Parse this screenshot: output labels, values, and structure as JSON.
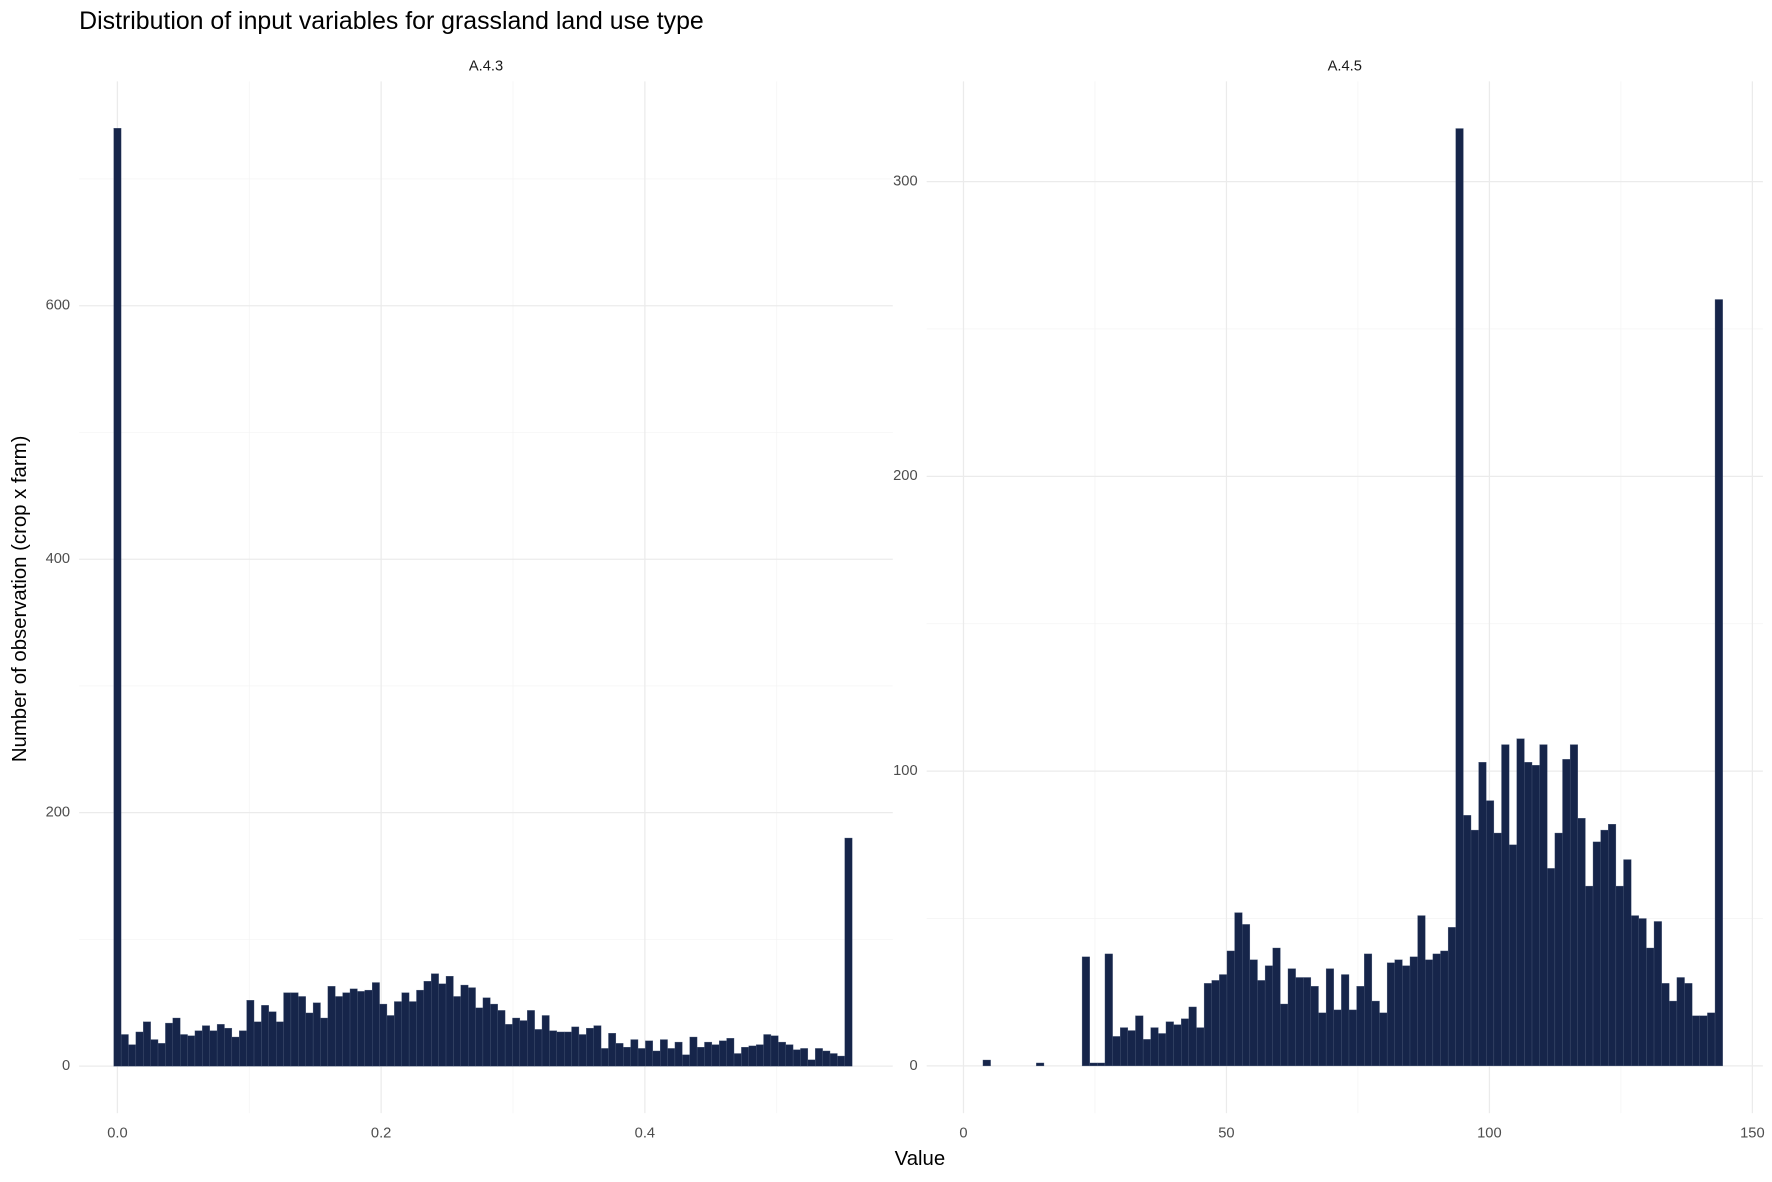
{
  "title": "Distribution of input variables for grassland land use type",
  "x_label": "Value",
  "y_label": "Number of observation (crop x farm)",
  "chart_data": [
    {
      "type": "histogram",
      "title": "A.4.3",
      "color": "#16254a",
      "grid": true,
      "bins": [
        -0.0028,
        0.0028,
        0.0084,
        0.014,
        0.0196,
        0.0252,
        0.0308,
        0.0364,
        0.042,
        0.0476,
        0.0532,
        0.0588,
        0.0644,
        0.07,
        0.0756,
        0.0812,
        0.0868,
        0.0924,
        0.098,
        0.1036,
        0.1092,
        0.1148,
        0.1204,
        0.126,
        0.1316,
        0.1372,
        0.1428,
        0.1484,
        0.154,
        0.1596,
        0.1652,
        0.1708,
        0.1764,
        0.182,
        0.1876,
        0.1932,
        0.1988,
        0.2044,
        0.21,
        0.2156,
        0.2212,
        0.2268,
        0.2324,
        0.238,
        0.2436,
        0.2492,
        0.2548,
        0.2604,
        0.266,
        0.2716,
        0.2772,
        0.2828,
        0.2884,
        0.294,
        0.2996,
        0.3052,
        0.3108,
        0.3164,
        0.322,
        0.3276,
        0.3332,
        0.3388,
        0.3444,
        0.35,
        0.3556,
        0.3612,
        0.3668,
        0.3724,
        0.378,
        0.3836,
        0.3892,
        0.3948,
        0.4004,
        0.406,
        0.4116,
        0.4172,
        0.4228,
        0.4284,
        0.434,
        0.4396,
        0.4452,
        0.4508,
        0.4564,
        0.462,
        0.4676,
        0.4732,
        0.4788,
        0.4844,
        0.49,
        0.4956,
        0.5012,
        0.5068,
        0.5124,
        0.518,
        0.5236,
        0.5292,
        0.5348,
        0.5404,
        0.546,
        0.5516,
        0.5572
      ],
      "values": [
        740,
        25,
        17,
        27,
        35,
        21,
        18,
        34,
        38,
        25,
        24,
        28,
        32,
        28,
        33,
        30,
        23,
        28,
        52,
        35,
        48,
        43,
        35,
        58,
        58,
        55,
        42,
        50,
        38,
        63,
        55,
        58,
        61,
        59,
        60,
        66,
        49,
        40,
        51,
        58,
        51,
        60,
        67,
        73,
        65,
        71,
        55,
        64,
        62,
        46,
        54,
        49,
        44,
        33,
        38,
        36,
        44,
        29,
        40,
        28,
        27,
        27,
        31,
        25,
        30,
        32,
        14,
        26,
        18,
        15,
        21,
        14,
        20,
        12,
        21,
        14,
        19,
        9,
        23,
        15,
        19,
        17,
        20,
        22,
        10,
        15,
        16,
        17,
        25,
        24,
        19,
        17,
        13,
        14,
        5,
        14,
        12,
        10,
        8,
        180
      ],
      "xlim": [
        -0.029,
        0.588
      ],
      "ylim": [
        -37,
        777
      ],
      "xticks": [
        {
          "value": 0,
          "label": "0.0"
        },
        {
          "value": 0.2,
          "label": "0.2"
        },
        {
          "value": 0.4,
          "label": "0.4"
        }
      ],
      "x_minor_ticks": [
        0.1,
        0.3,
        0.5
      ],
      "yticks": [
        0,
        200,
        400,
        600
      ],
      "y_minor_ticks": [
        100,
        300,
        500,
        700
      ]
    },
    {
      "type": "histogram",
      "title": "A.4.5",
      "color": "#16254a",
      "grid": true,
      "bins": [
        3.7,
        5.15,
        6.6,
        8.05,
        9.5,
        10.95,
        12.4,
        13.85,
        15.3,
        16.75,
        18.2,
        19.65,
        21.1,
        22.55,
        24,
        25.45,
        26.9,
        28.35,
        29.8,
        31.25,
        32.7,
        34.15,
        35.6,
        37.05,
        38.5,
        39.95,
        41.4,
        42.85,
        44.3,
        45.75,
        47.2,
        48.65,
        50.1,
        51.55,
        53,
        54.45,
        55.9,
        57.35,
        58.8,
        60.25,
        61.7,
        63.15,
        64.6,
        66.05,
        67.5,
        68.95,
        70.4,
        71.85,
        73.3,
        74.75,
        76.2,
        77.65,
        79.1,
        80.55,
        82,
        83.45,
        84.9,
        86.35,
        87.8,
        89.25,
        90.7,
        92.15,
        93.6,
        95.05,
        96.5,
        97.95,
        99.4,
        100.85,
        102.3,
        103.75,
        105.2,
        106.65,
        108.1,
        109.55,
        111,
        112.45,
        113.9,
        115.35,
        116.8,
        118.25,
        119.7,
        121.15,
        122.6,
        124.05,
        125.5,
        126.95,
        128.4,
        129.85,
        131.3,
        132.75,
        134.2,
        135.65,
        137.1,
        138.55,
        140,
        141.45,
        142.9,
        144.35
      ],
      "values": [
        2,
        0,
        0,
        0,
        0,
        0,
        0,
        1,
        0,
        0,
        0,
        0,
        0,
        37,
        1,
        1,
        38,
        10,
        13,
        12,
        17,
        9,
        13,
        11,
        15,
        14,
        16,
        20,
        13,
        28,
        29,
        31,
        39,
        52,
        48,
        36,
        29,
        34,
        40,
        21,
        33,
        30,
        30,
        27,
        18,
        33,
        19,
        31,
        19,
        27,
        38,
        22,
        18,
        35,
        36,
        34,
        37,
        51,
        36,
        38,
        39,
        47,
        318,
        85,
        80,
        103,
        90,
        79,
        109,
        75,
        111,
        103,
        102,
        109,
        67,
        79,
        104,
        109,
        84,
        61,
        76,
        80,
        82,
        61,
        70,
        51,
        50,
        40,
        49,
        28,
        22,
        30,
        28,
        17,
        17,
        18,
        260
      ],
      "xlim": [
        -7,
        152
      ],
      "ylim": [
        -16,
        334
      ],
      "xticks": [
        0,
        50,
        100,
        150
      ],
      "x_minor_ticks": [
        25,
        75,
        125
      ],
      "yticks": [
        0,
        100,
        200,
        300
      ],
      "y_minor_ticks": [
        50,
        150,
        250
      ]
    }
  ]
}
